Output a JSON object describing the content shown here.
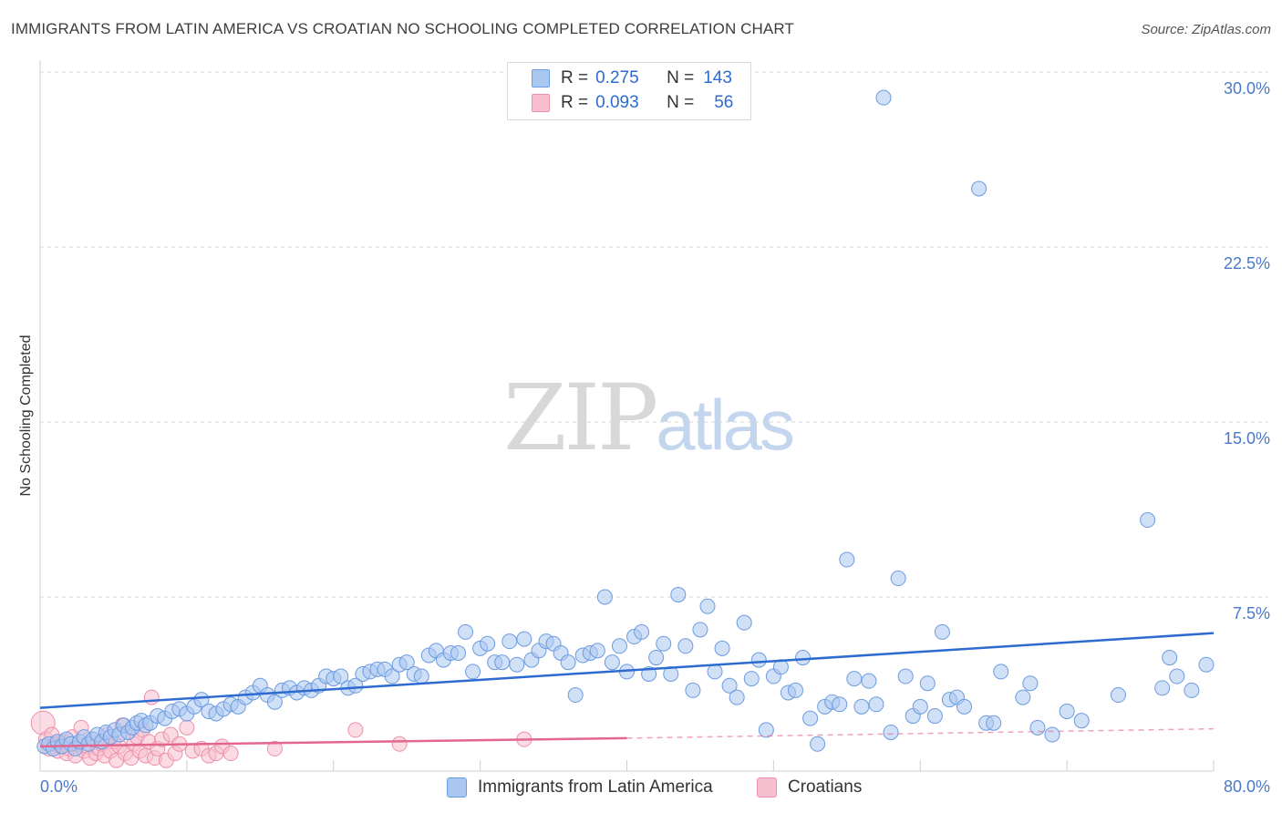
{
  "title": "IMMIGRANTS FROM LATIN AMERICA VS CROATIAN NO SCHOOLING COMPLETED CORRELATION CHART",
  "source": "Source: ZipAtlas.com",
  "watermark": {
    "zip": "ZIP",
    "atlas": "atlas"
  },
  "legend": {
    "rows": [
      {
        "r_label": "R =",
        "r_value": "0.275",
        "n_label": "N =",
        "n_value": "143"
      },
      {
        "r_label": "R =",
        "r_value": "0.093",
        "n_label": "N =",
        "n_value": "56"
      }
    ]
  },
  "bottom_legend": {
    "series1": "Immigrants from Latin America",
    "series2": "Croatians"
  },
  "colors": {
    "blue_fill": "#a9c7f0",
    "blue_stroke": "#6d9be0",
    "blue_line": "#2e6bd1",
    "pink_fill": "#f7bfd0",
    "pink_stroke": "#ee8fab",
    "pink_line": "#e3668f",
    "grid": "#d7d7d7",
    "tick_text": "#4a78c8"
  },
  "chart_data": {
    "type": "scatter",
    "title": "IMMIGRANTS FROM LATIN AMERICA VS CROATIAN NO SCHOOLING COMPLETED CORRELATION CHART",
    "xlabel": "",
    "ylabel": "No Schooling Completed",
    "xlim": [
      0,
      80
    ],
    "ylim": [
      0,
      31.5
    ],
    "x_tick_labels": [
      "0.0%",
      "80.0%"
    ],
    "y_ticks": [
      7.5,
      15.0,
      22.5,
      30.0
    ],
    "y_tick_labels": [
      "7.5%",
      "15.0%",
      "22.5%",
      "30.0%"
    ],
    "grid": true,
    "series": [
      {
        "name": "Immigrants from Latin America",
        "R": 0.275,
        "N": 143,
        "trend": {
          "x": [
            0,
            80
          ],
          "y": [
            2.75,
            5.95
          ]
        },
        "points": [
          [
            0.3,
            1.1
          ],
          [
            0.6,
            1.2
          ],
          [
            0.9,
            1.0
          ],
          [
            1.2,
            1.3
          ],
          [
            1.5,
            1.1
          ],
          [
            1.8,
            1.4
          ],
          [
            2.1,
            1.2
          ],
          [
            2.4,
            1.0
          ],
          [
            2.7,
            1.3
          ],
          [
            3.0,
            1.5
          ],
          [
            3.3,
            1.2
          ],
          [
            3.6,
            1.4
          ],
          [
            3.9,
            1.6
          ],
          [
            4.2,
            1.3
          ],
          [
            4.5,
            1.7
          ],
          [
            4.8,
            1.5
          ],
          [
            5.1,
            1.8
          ],
          [
            5.4,
            1.6
          ],
          [
            5.7,
            2.0
          ],
          [
            6.0,
            1.7
          ],
          [
            6.3,
            1.9
          ],
          [
            6.6,
            2.1
          ],
          [
            6.9,
            2.2
          ],
          [
            7.2,
            2.0
          ],
          [
            7.5,
            2.1
          ],
          [
            8.0,
            2.4
          ],
          [
            8.5,
            2.3
          ],
          [
            9.0,
            2.6
          ],
          [
            9.5,
            2.7
          ],
          [
            10.0,
            2.5
          ],
          [
            10.5,
            2.8
          ],
          [
            11.0,
            3.1
          ],
          [
            11.5,
            2.6
          ],
          [
            12.0,
            2.5
          ],
          [
            12.5,
            2.7
          ],
          [
            13.0,
            2.9
          ],
          [
            13.5,
            2.8
          ],
          [
            14.0,
            3.2
          ],
          [
            14.5,
            3.4
          ],
          [
            15.0,
            3.7
          ],
          [
            15.5,
            3.3
          ],
          [
            16.0,
            3.0
          ],
          [
            16.5,
            3.5
          ],
          [
            17.0,
            3.6
          ],
          [
            17.5,
            3.4
          ],
          [
            18.0,
            3.6
          ],
          [
            18.5,
            3.5
          ],
          [
            19.0,
            3.7
          ],
          [
            19.5,
            4.1
          ],
          [
            20.0,
            4.0
          ],
          [
            20.5,
            4.1
          ],
          [
            21.0,
            3.6
          ],
          [
            21.5,
            3.7
          ],
          [
            22.0,
            4.2
          ],
          [
            22.5,
            4.3
          ],
          [
            23.0,
            4.4
          ],
          [
            23.5,
            4.4
          ],
          [
            24.0,
            4.1
          ],
          [
            24.5,
            4.6
          ],
          [
            25.0,
            4.7
          ],
          [
            25.5,
            4.2
          ],
          [
            26.0,
            4.1
          ],
          [
            26.5,
            5.0
          ],
          [
            27.0,
            5.2
          ],
          [
            27.5,
            4.8
          ],
          [
            28.0,
            5.1
          ],
          [
            28.5,
            5.1
          ],
          [
            29.0,
            6.0
          ],
          [
            29.5,
            4.3
          ],
          [
            30.0,
            5.3
          ],
          [
            30.5,
            5.5
          ],
          [
            31.0,
            4.7
          ],
          [
            31.5,
            4.7
          ],
          [
            32.0,
            5.6
          ],
          [
            32.5,
            4.6
          ],
          [
            33.0,
            5.7
          ],
          [
            33.5,
            4.8
          ],
          [
            34.0,
            5.2
          ],
          [
            34.5,
            5.6
          ],
          [
            35.0,
            5.5
          ],
          [
            35.5,
            5.1
          ],
          [
            36.0,
            4.7
          ],
          [
            36.5,
            3.3
          ],
          [
            37.0,
            5.0
          ],
          [
            37.5,
            5.1
          ],
          [
            38.0,
            5.2
          ],
          [
            38.5,
            7.5
          ],
          [
            39.0,
            4.7
          ],
          [
            39.5,
            5.4
          ],
          [
            40.0,
            4.3
          ],
          [
            40.5,
            5.8
          ],
          [
            41.0,
            6.0
          ],
          [
            41.5,
            4.2
          ],
          [
            42.0,
            4.9
          ],
          [
            42.5,
            5.5
          ],
          [
            43.0,
            4.2
          ],
          [
            43.5,
            7.6
          ],
          [
            44.0,
            5.4
          ],
          [
            44.5,
            3.5
          ],
          [
            45.0,
            6.1
          ],
          [
            45.5,
            7.1
          ],
          [
            46.0,
            4.3
          ],
          [
            46.5,
            5.3
          ],
          [
            47.0,
            3.7
          ],
          [
            47.5,
            3.2
          ],
          [
            48.0,
            6.4
          ],
          [
            48.5,
            4.0
          ],
          [
            49.0,
            4.8
          ],
          [
            49.5,
            1.8
          ],
          [
            50.0,
            4.1
          ],
          [
            50.5,
            4.5
          ],
          [
            51.0,
            3.4
          ],
          [
            51.5,
            3.5
          ],
          [
            52.0,
            4.9
          ],
          [
            52.5,
            2.3
          ],
          [
            53.0,
            1.2
          ],
          [
            53.5,
            2.8
          ],
          [
            54.0,
            3.0
          ],
          [
            54.5,
            2.9
          ],
          [
            55.0,
            9.1
          ],
          [
            55.5,
            4.0
          ],
          [
            56.0,
            2.8
          ],
          [
            56.5,
            3.9
          ],
          [
            57.0,
            2.9
          ],
          [
            57.5,
            28.9
          ],
          [
            58.0,
            1.7
          ],
          [
            58.5,
            8.3
          ],
          [
            59.0,
            4.1
          ],
          [
            59.5,
            2.4
          ],
          [
            60.0,
            2.8
          ],
          [
            60.5,
            3.8
          ],
          [
            61.0,
            2.4
          ],
          [
            61.5,
            6.0
          ],
          [
            62.0,
            3.1
          ],
          [
            62.5,
            3.2
          ],
          [
            63.0,
            2.8
          ],
          [
            64.0,
            25.0
          ],
          [
            64.5,
            2.1
          ],
          [
            65.0,
            2.1
          ],
          [
            65.5,
            4.3
          ],
          [
            67.0,
            3.2
          ],
          [
            67.5,
            3.8
          ],
          [
            68.0,
            1.9
          ],
          [
            69.0,
            1.6
          ],
          [
            70.0,
            2.6
          ],
          [
            71.0,
            2.2
          ],
          [
            73.5,
            3.3
          ],
          [
            75.5,
            10.8
          ],
          [
            76.5,
            3.6
          ],
          [
            77.0,
            4.9
          ],
          [
            77.5,
            4.1
          ],
          [
            78.5,
            3.5
          ],
          [
            79.5,
            4.6
          ]
        ]
      },
      {
        "name": "Croatians",
        "R": 0.093,
        "N": 56,
        "trend": {
          "x": [
            0,
            40
          ],
          "y": [
            1.1,
            1.45
          ]
        },
        "trend_dashed": {
          "x": [
            40,
            80
          ],
          "y": [
            1.45,
            1.85
          ]
        },
        "points": [
          [
            0.2,
            2.1
          ],
          [
            0.4,
            1.4
          ],
          [
            0.6,
            1.0
          ],
          [
            0.8,
            1.6
          ],
          [
            1.0,
            1.2
          ],
          [
            1.2,
            0.9
          ],
          [
            1.4,
            1.1
          ],
          [
            1.6,
            1.3
          ],
          [
            1.8,
            0.8
          ],
          [
            2.0,
            1.0
          ],
          [
            2.2,
            1.5
          ],
          [
            2.4,
            0.7
          ],
          [
            2.6,
            1.2
          ],
          [
            2.8,
            1.9
          ],
          [
            3.0,
            0.9
          ],
          [
            3.2,
            1.1
          ],
          [
            3.4,
            0.6
          ],
          [
            3.6,
            1.4
          ],
          [
            3.8,
            0.8
          ],
          [
            4.0,
            1.0
          ],
          [
            4.2,
            1.2
          ],
          [
            4.4,
            0.7
          ],
          [
            4.6,
            1.6
          ],
          [
            4.8,
            0.9
          ],
          [
            5.0,
            1.3
          ],
          [
            5.2,
            0.5
          ],
          [
            5.4,
            1.1
          ],
          [
            5.6,
            2.0
          ],
          [
            5.8,
            0.8
          ],
          [
            6.0,
            1.7
          ],
          [
            6.2,
            0.6
          ],
          [
            6.4,
            1.2
          ],
          [
            6.6,
            1.5
          ],
          [
            6.8,
            0.9
          ],
          [
            7.0,
            1.8
          ],
          [
            7.2,
            0.7
          ],
          [
            7.4,
            1.3
          ],
          [
            7.6,
            3.2
          ],
          [
            7.8,
            0.6
          ],
          [
            8.0,
            1.0
          ],
          [
            8.3,
            1.4
          ],
          [
            8.6,
            0.5
          ],
          [
            8.9,
            1.6
          ],
          [
            9.2,
            0.8
          ],
          [
            9.5,
            1.2
          ],
          [
            10.0,
            1.9
          ],
          [
            10.4,
            0.9
          ],
          [
            11.0,
            1.0
          ],
          [
            11.5,
            0.7
          ],
          [
            12.0,
            0.8
          ],
          [
            12.4,
            1.1
          ],
          [
            13.0,
            0.8
          ],
          [
            16.0,
            1.0
          ],
          [
            21.5,
            1.8
          ],
          [
            24.5,
            1.2
          ],
          [
            33.0,
            1.4
          ]
        ]
      }
    ]
  }
}
